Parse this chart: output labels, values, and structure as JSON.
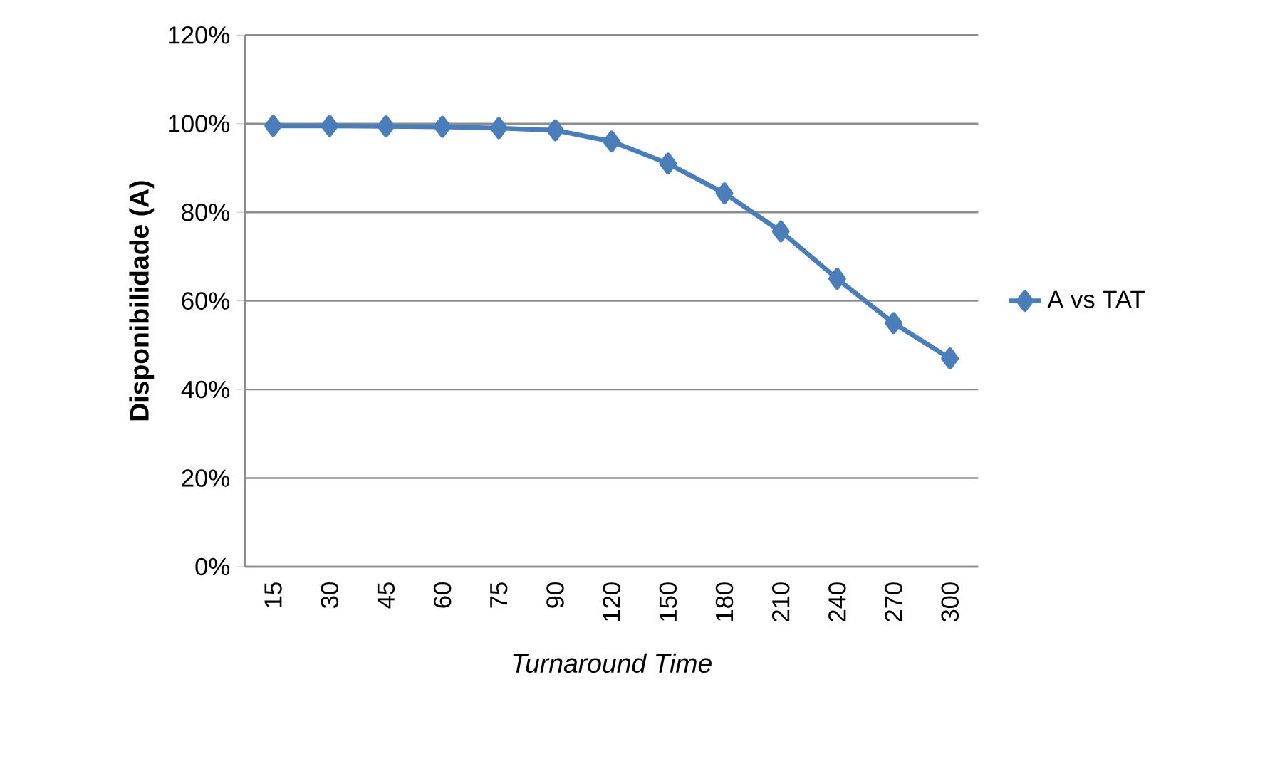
{
  "chart_data": {
    "type": "line",
    "xlabel": "*Turnaround Time*",
    "ylabel": "**Disponibilidade (A)**",
    "categories": [
      "15",
      "30",
      "45",
      "60",
      "75",
      "90",
      "120",
      "150",
      "180",
      "210",
      "240",
      "270",
      "300"
    ],
    "series": [
      {
        "name": "A vs TAT",
        "color": "#4a7ebb",
        "values": [
          99.5,
          99.5,
          99.4,
          99.3,
          99.0,
          98.5,
          96.0,
          91.0,
          84.3,
          75.7,
          65.0,
          55.0,
          47.0
        ]
      }
    ],
    "ylim": [
      0,
      120
    ],
    "yticks": [
      {
        "value": 0,
        "label": "0%"
      },
      {
        "value": 20,
        "label": "20%"
      },
      {
        "value": 40,
        "label": "40%"
      },
      {
        "value": 60,
        "label": "60%"
      },
      {
        "value": 80,
        "label": "80%"
      },
      {
        "value": 100,
        "label": "100%"
      },
      {
        "value": 120,
        "label": "120%"
      }
    ],
    "grid": "y",
    "legend": "right",
    "marker": "diamond",
    "line_style": "solid"
  }
}
